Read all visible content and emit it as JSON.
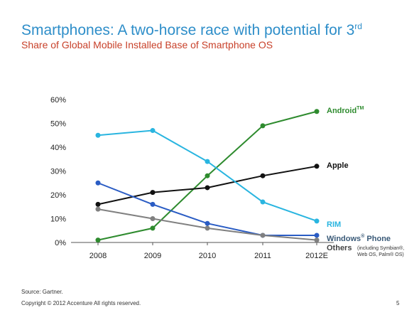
{
  "header": {
    "title": "Smartphones: A two-horse race with potential for 3",
    "title_sup": "rd",
    "subtitle": "Share of Global Mobile Installed Base of Smartphone OS"
  },
  "footer": {
    "source": "Source: Gartner.",
    "copyright": "Copyright © 2012 Accenture  All rights reserved.",
    "page_number": "5"
  },
  "chart_data": {
    "type": "line",
    "categories": [
      "2008",
      "2009",
      "2010",
      "2011",
      "2012E"
    ],
    "ylim": [
      0,
      60
    ],
    "yticks": [
      "0%",
      "10%",
      "20%",
      "30%",
      "40%",
      "50%",
      "60%"
    ],
    "grid": false,
    "legend": "right end labels",
    "series": [
      {
        "name": "Android",
        "name_sup": "TM",
        "color": "#2e8b2e",
        "values": [
          1,
          6,
          28,
          49,
          55
        ]
      },
      {
        "name": "Apple",
        "color": "#111111",
        "values": [
          16,
          21,
          23,
          28,
          32
        ]
      },
      {
        "name": "RIM",
        "color": "#29b5e0",
        "values": [
          45,
          47,
          34,
          17,
          9
        ]
      },
      {
        "name": "Windows",
        "name_sup": "®",
        "name_suffix": " Phone",
        "color": "#2a5cc4",
        "values": [
          25,
          16,
          8,
          3,
          3
        ]
      },
      {
        "name": "Others",
        "note": "(including Symbian®, Web OS, Palm® OS)",
        "color": "#808080",
        "values": [
          14,
          10,
          6,
          3,
          1
        ]
      }
    ]
  }
}
